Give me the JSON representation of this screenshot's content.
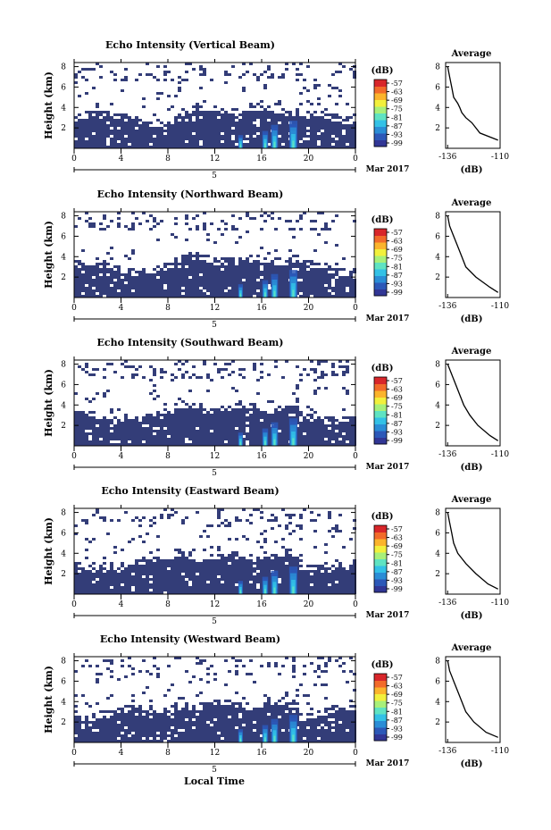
{
  "figure": {
    "xlabel": "Local Time",
    "date_label": "Mar 2017",
    "day_label": "5"
  },
  "chart_data": [
    {
      "type": "heatmap",
      "title": "Echo Intensity (Vertical Beam)",
      "ylabel": "Height (km)",
      "x_ticks": [
        "0",
        "4",
        "8",
        "12",
        "16",
        "20",
        "0"
      ],
      "x_range": [
        0,
        24
      ],
      "y_ticks": [
        "2",
        "4",
        "6",
        "8"
      ],
      "y_range": [
        0,
        8.4
      ],
      "colorbar": {
        "label": "(dB)",
        "ticks": [
          "-57",
          "-63",
          "-69",
          "-75",
          "-81",
          "-87",
          "-93",
          "-99"
        ]
      },
      "average": {
        "title": "Average",
        "xlabel": "(dB)",
        "x_ticks": [
          "-136",
          "-110"
        ],
        "x_range": [
          -137,
          -110
        ],
        "y_ticks": [
          "2",
          "4",
          "6",
          "8"
        ],
        "y_range": [
          0,
          8.4
        ]
      },
      "heights": [
        0.8,
        1.5,
        2.5,
        3.0,
        3.5,
        4.0,
        4.4,
        5.0,
        6.0,
        7.0,
        8.0
      ],
      "profile": [
        -111,
        -120,
        -124,
        -127,
        -129,
        -130,
        -131,
        -133,
        -134,
        -135,
        -136
      ]
    },
    {
      "type": "heatmap",
      "title": "Echo Intensity (Northward Beam)",
      "ylabel": "Height (km)",
      "x_ticks": [
        "0",
        "4",
        "8",
        "12",
        "16",
        "20",
        "0"
      ],
      "x_range": [
        0,
        24
      ],
      "y_ticks": [
        "2",
        "4",
        "6",
        "8"
      ],
      "y_range": [
        0,
        8.4
      ],
      "colorbar": {
        "label": "(dB)",
        "ticks": [
          "-57",
          "-63",
          "-69",
          "-75",
          "-81",
          "-87",
          "-93",
          "-99"
        ]
      },
      "average": {
        "title": "Average",
        "xlabel": "(dB)",
        "x_ticks": [
          "-136",
          "-110"
        ],
        "x_range": [
          -137,
          -110
        ],
        "y_ticks": [
          "2",
          "4",
          "6",
          "8"
        ],
        "y_range": [
          0,
          8.4
        ]
      },
      "heights": [
        0.5,
        1.0,
        2.0,
        3.0,
        4.0,
        5.0,
        6.0,
        7.0,
        8.0
      ],
      "profile": [
        -111,
        -115,
        -122,
        -127,
        -129,
        -131,
        -133,
        -135,
        -136
      ]
    },
    {
      "type": "heatmap",
      "title": "Echo Intensity (Southward Beam)",
      "ylabel": "Height (km)",
      "x_ticks": [
        "0",
        "4",
        "8",
        "12",
        "16",
        "20",
        "0"
      ],
      "x_range": [
        0,
        24
      ],
      "y_ticks": [
        "2",
        "4",
        "6",
        "8"
      ],
      "y_range": [
        0,
        8.4
      ],
      "colorbar": {
        "label": "(dB)",
        "ticks": [
          "-57",
          "-63",
          "-69",
          "-75",
          "-81",
          "-87",
          "-93",
          "-99"
        ]
      },
      "average": {
        "title": "Average",
        "xlabel": "(dB)",
        "x_ticks": [
          "-136",
          "-110"
        ],
        "x_range": [
          -137,
          -110
        ],
        "y_ticks": [
          "2",
          "4",
          "6",
          "8"
        ],
        "y_range": [
          0,
          8.4
        ]
      },
      "heights": [
        0.5,
        1.0,
        2.0,
        3.0,
        4.0,
        5.0,
        6.0,
        7.0,
        8.0
      ],
      "profile": [
        -111,
        -115,
        -121,
        -125,
        -128,
        -130,
        -132,
        -134,
        -136
      ]
    },
    {
      "type": "heatmap",
      "title": "Echo Intensity (Eastward Beam)",
      "ylabel": "Height (km)",
      "x_ticks": [
        "0",
        "4",
        "8",
        "12",
        "16",
        "20",
        "0"
      ],
      "x_range": [
        0,
        24
      ],
      "y_ticks": [
        "2",
        "4",
        "6",
        "8"
      ],
      "y_range": [
        0,
        8.4
      ],
      "colorbar": {
        "label": "(dB)",
        "ticks": [
          "-57",
          "-63",
          "-69",
          "-75",
          "-81",
          "-87",
          "-93",
          "-99"
        ]
      },
      "average": {
        "title": "Average",
        "xlabel": "(dB)",
        "x_ticks": [
          "-136",
          "-110"
        ],
        "x_range": [
          -137,
          -110
        ],
        "y_ticks": [
          "2",
          "4",
          "6",
          "8"
        ],
        "y_range": [
          0,
          8.4
        ]
      },
      "heights": [
        0.5,
        1.0,
        2.0,
        3.0,
        3.5,
        4.0,
        5.0,
        6.0,
        7.0,
        8.0
      ],
      "profile": [
        -111,
        -116,
        -122,
        -127,
        -129,
        -131,
        -133,
        -134,
        -135,
        -136
      ]
    },
    {
      "type": "heatmap",
      "title": "Echo Intensity (Westward Beam)",
      "ylabel": "Height (km)",
      "x_ticks": [
        "0",
        "4",
        "8",
        "12",
        "16",
        "20",
        "0"
      ],
      "x_range": [
        0,
        24
      ],
      "y_ticks": [
        "2",
        "4",
        "6",
        "8"
      ],
      "y_range": [
        0,
        8.4
      ],
      "colorbar": {
        "label": "(dB)",
        "ticks": [
          "-57",
          "-63",
          "-69",
          "-75",
          "-81",
          "-87",
          "-93",
          "-99"
        ]
      },
      "average": {
        "title": "Average",
        "xlabel": "(dB)",
        "x_ticks": [
          "-136",
          "-110"
        ],
        "x_range": [
          -137,
          -110
        ],
        "y_ticks": [
          "2",
          "4",
          "6",
          "8"
        ],
        "y_range": [
          0,
          8.4
        ]
      },
      "heights": [
        0.5,
        1.0,
        2.0,
        3.0,
        4.0,
        5.0,
        6.0,
        6.5,
        7.0,
        8.0
      ],
      "profile": [
        -111,
        -117,
        -123,
        -127,
        -129,
        -131,
        -133,
        -134,
        -135,
        -136
      ]
    }
  ],
  "colors": {
    "background_echo": "#333d78",
    "colormap": [
      "#313695",
      "#2c58b8",
      "#2a8dd6",
      "#33c1e6",
      "#5fe3c2",
      "#a8f07a",
      "#f2f03c",
      "#fbb42c",
      "#f26b2a",
      "#d8262a"
    ]
  }
}
